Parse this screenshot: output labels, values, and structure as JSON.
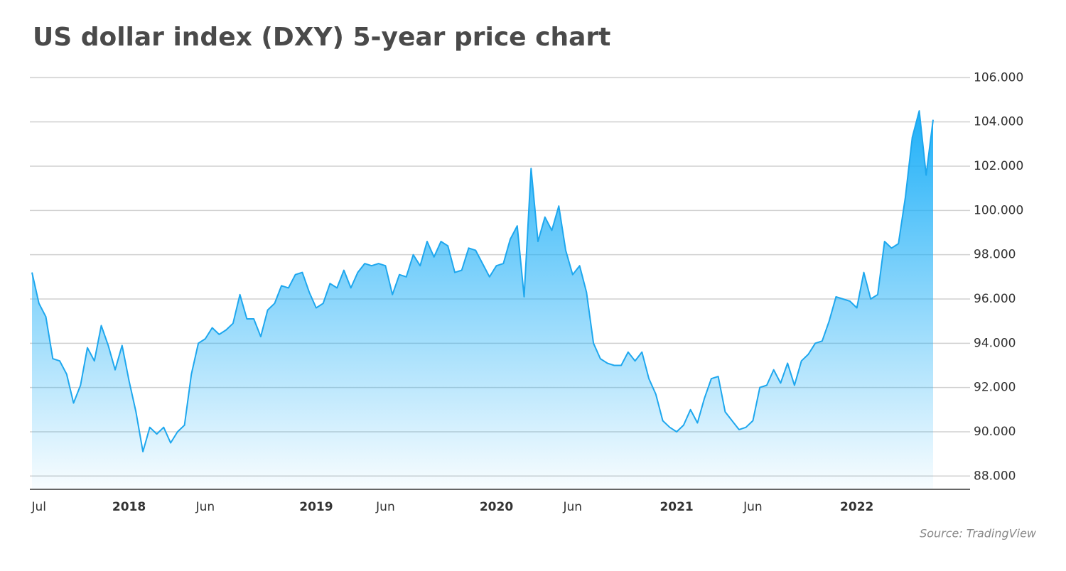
{
  "chart_data": {
    "type": "area",
    "title": "US dollar index (DXY) 5-year price chart",
    "source": "Source: TradingView",
    "categories": [
      null,
      "Jul",
      null,
      null,
      null,
      null,
      null,
      null,
      null,
      null,
      null,
      null,
      null,
      null,
      "2018",
      null,
      null,
      null,
      null,
      null,
      null,
      null,
      null,
      null,
      null,
      "Jun",
      null,
      null,
      null,
      null,
      null,
      null,
      null,
      null,
      null,
      null,
      null,
      null,
      null,
      null,
      null,
      "2019",
      null,
      null,
      null,
      null,
      null,
      null,
      null,
      null,
      null,
      "Jun",
      null,
      null,
      null,
      null,
      null,
      null,
      null,
      null,
      null,
      null,
      null,
      null,
      null,
      null,
      null,
      "2020",
      null,
      null,
      null,
      null,
      null,
      null,
      null,
      null,
      null,
      null,
      "Jun",
      null,
      null,
      null,
      null,
      null,
      null,
      null,
      null,
      null,
      null,
      null,
      null,
      null,
      null,
      "2021",
      null,
      null,
      null,
      null,
      null,
      null,
      null,
      null,
      null,
      null,
      "Jun",
      null,
      null,
      null,
      null,
      null,
      null,
      null,
      null,
      null,
      null,
      null,
      null,
      null,
      null,
      "2022",
      null,
      null,
      null,
      null,
      null,
      null,
      null,
      null,
      null,
      null,
      null
    ],
    "series": [
      {
        "name": "DXY",
        "color": "#1ea7ee",
        "values": [
          97.2,
          95.8,
          95.2,
          93.3,
          93.2,
          92.6,
          91.3,
          92.1,
          93.8,
          93.2,
          94.8,
          93.9,
          92.8,
          93.9,
          92.3,
          90.9,
          89.1,
          90.2,
          89.9,
          90.2,
          89.5,
          90.0,
          90.3,
          92.6,
          94.0,
          94.2,
          94.7,
          94.4,
          94.6,
          94.9,
          96.2,
          95.1,
          95.1,
          94.3,
          95.5,
          95.8,
          96.6,
          96.5,
          97.1,
          97.2,
          96.3,
          95.6,
          95.8,
          96.7,
          96.5,
          97.3,
          96.5,
          97.2,
          97.6,
          97.5,
          97.6,
          97.5,
          96.2,
          97.1,
          97.0,
          98.0,
          97.5,
          98.6,
          97.9,
          98.6,
          98.4,
          97.2,
          97.3,
          98.3,
          98.2,
          97.6,
          97.0,
          97.5,
          97.6,
          98.7,
          99.3,
          96.1,
          101.9,
          98.6,
          99.7,
          99.1,
          100.2,
          98.2,
          97.1,
          97.5,
          96.3,
          94.0,
          93.3,
          93.1,
          93.0,
          93.0,
          93.6,
          93.2,
          93.6,
          92.4,
          91.7,
          90.5,
          90.2,
          90.0,
          90.3,
          91.0,
          90.4,
          91.5,
          92.4,
          92.5,
          90.9,
          90.5,
          90.1,
          90.2,
          90.5,
          92.0,
          92.1,
          92.8,
          92.2,
          93.1,
          92.1,
          93.2,
          93.5,
          94.0,
          94.1,
          95.0,
          96.1,
          96.0,
          95.9,
          95.6,
          97.2,
          96.0,
          96.2,
          98.6,
          98.3,
          98.5,
          100.6,
          103.3,
          104.5,
          101.6,
          104.1
        ]
      }
    ],
    "ylim": [
      87.4,
      106.3
    ],
    "yticks": [
      {
        "value": 88,
        "label": "88.000"
      },
      {
        "value": 90,
        "label": "90.000"
      },
      {
        "value": 92,
        "label": "92.000"
      },
      {
        "value": 94,
        "label": "94.000"
      },
      {
        "value": 96,
        "label": "96.000"
      },
      {
        "value": 98,
        "label": "98.000"
      },
      {
        "value": 100,
        "label": "100.000"
      },
      {
        "value": 102,
        "label": "102.000"
      },
      {
        "value": 104,
        "label": "104.000"
      },
      {
        "value": 106,
        "label": "106.000"
      }
    ],
    "grid": true
  }
}
